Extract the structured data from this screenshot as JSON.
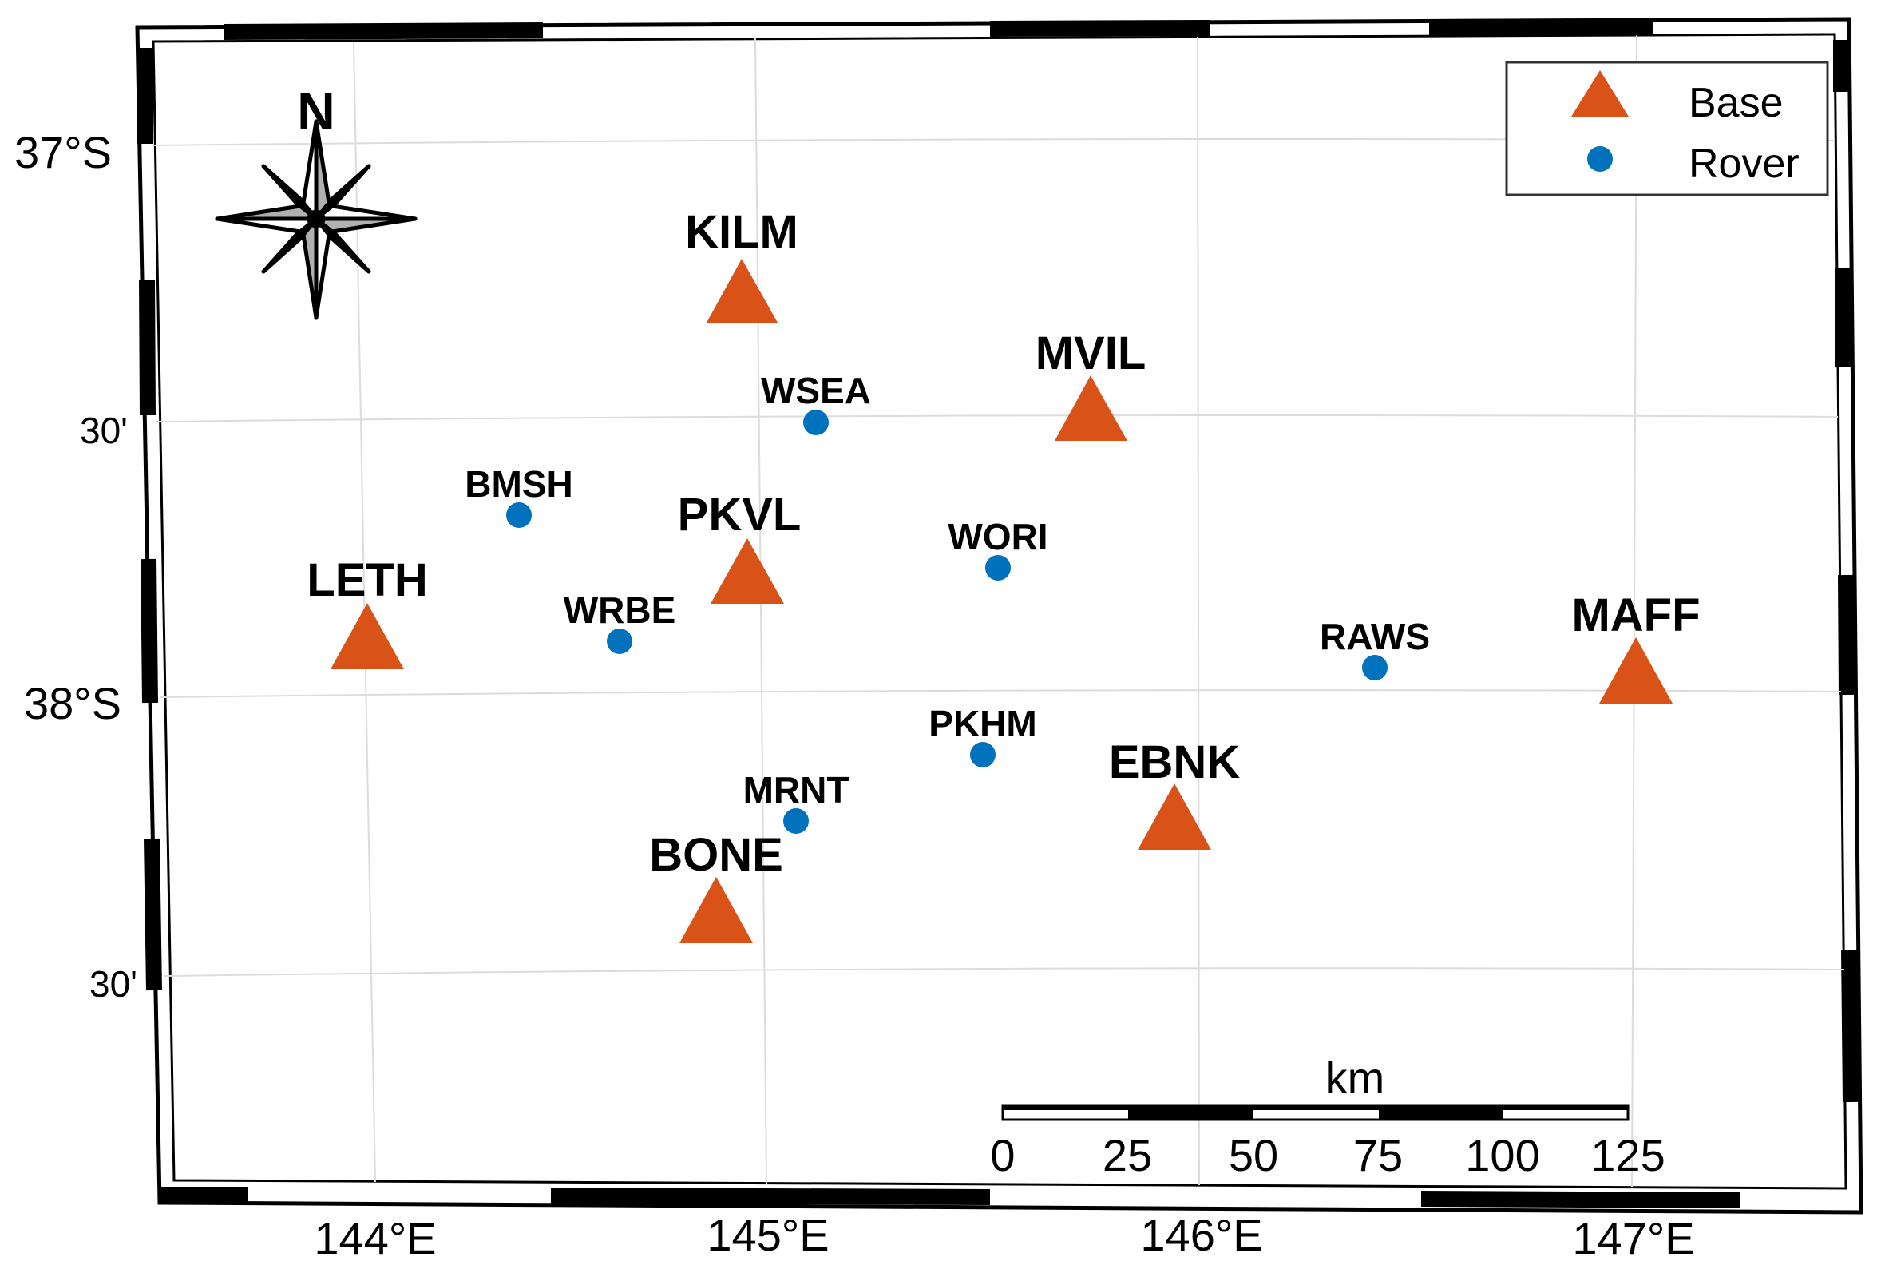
{
  "map": {
    "compass_label": "N",
    "latitude_labels": [
      {
        "id": "lat-37",
        "text": "37°S"
      },
      {
        "id": "lat-37-30",
        "text": "30'"
      },
      {
        "id": "lat-38",
        "text": "38°S"
      },
      {
        "id": "lat-38-30",
        "text": "30'"
      }
    ],
    "longitude_labels": [
      {
        "id": "lon-144",
        "text": "144°E"
      },
      {
        "id": "lon-145",
        "text": "145°E"
      },
      {
        "id": "lon-146",
        "text": "146°E"
      },
      {
        "id": "lon-147",
        "text": "147°E"
      }
    ],
    "bases": [
      {
        "name": "KILM"
      },
      {
        "name": "MVIL"
      },
      {
        "name": "PKVL"
      },
      {
        "name": "LETH"
      },
      {
        "name": "MAFF"
      },
      {
        "name": "EBNK"
      },
      {
        "name": "BONE"
      }
    ],
    "rovers": [
      {
        "name": "WSEA"
      },
      {
        "name": "BMSH"
      },
      {
        "name": "WORI"
      },
      {
        "name": "WRBE"
      },
      {
        "name": "RAWS"
      },
      {
        "name": "PKHM"
      },
      {
        "name": "MRNT"
      }
    ],
    "legend": {
      "base_label": "Base",
      "rover_label": "Rover"
    },
    "scale_bar": {
      "unit": "km",
      "ticks": [
        "0",
        "25",
        "50",
        "75",
        "100",
        "125"
      ]
    },
    "colors": {
      "base": "#d95319",
      "rover": "#0072bd"
    }
  }
}
